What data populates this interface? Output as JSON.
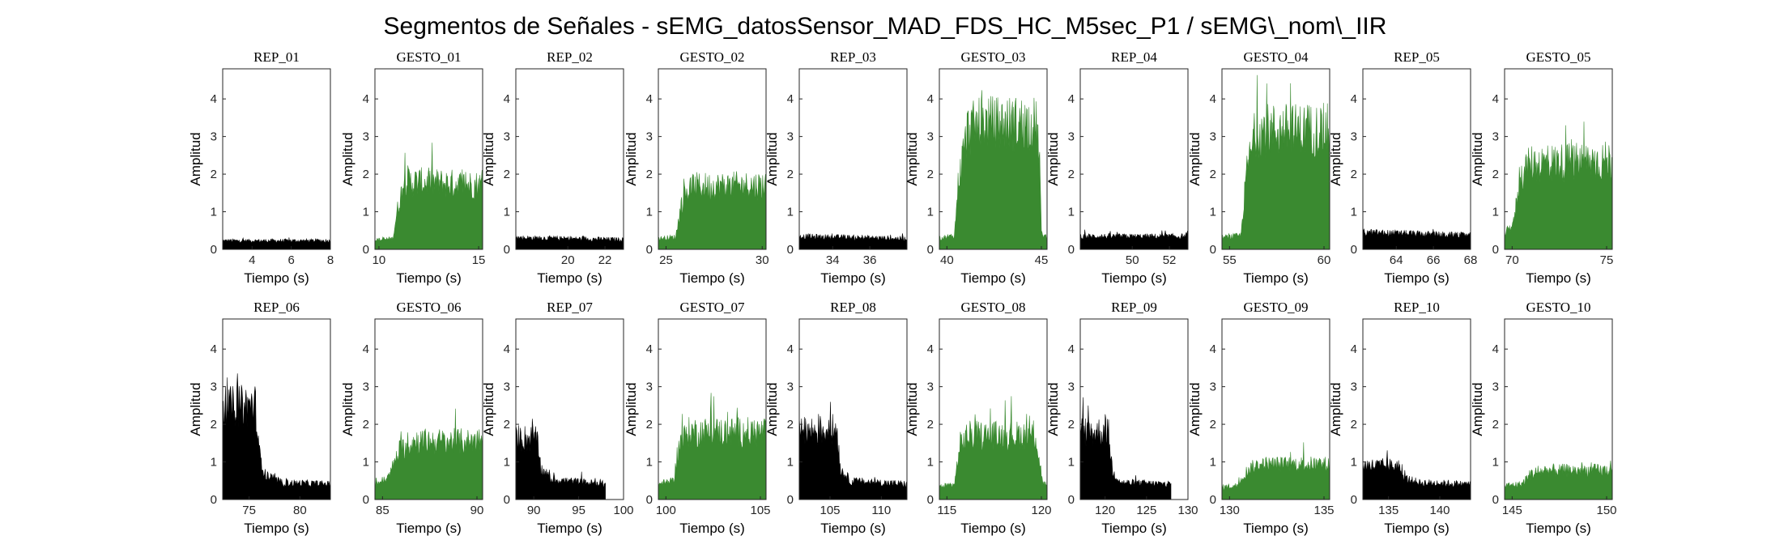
{
  "figure": {
    "title": "Segmentos de Señales - sEMG_datosSensor_MAD_FDS_HC_M5sec_P1 / sEMG\\_nom\\_IIR"
  },
  "colors": {
    "rep": "#000000",
    "gesto": "#3a8a30"
  },
  "chart_data": [
    {
      "type": "area",
      "title": "REP_01",
      "kind": "rep",
      "xlim": [
        2.5,
        8
      ],
      "ylim": [
        0,
        4.8
      ],
      "xticks": [
        4,
        6,
        8
      ],
      "yticks": [
        0,
        1,
        2,
        3,
        4
      ],
      "xlabel": "Tiempo (s)",
      "ylabel": "Amplitud",
      "envelope": [
        [
          2.5,
          0.28
        ],
        [
          8,
          0.28
        ]
      ]
    },
    {
      "type": "area",
      "title": "GESTO_01",
      "kind": "gesto",
      "xlim": [
        9.8,
        15.2
      ],
      "ylim": [
        0,
        4.8
      ],
      "xticks": [
        10,
        15
      ],
      "yticks": [
        0,
        1,
        2,
        3,
        4
      ],
      "xlabel": "Tiempo (s)",
      "ylabel": "Amplitud",
      "envelope": [
        [
          9.8,
          0.3
        ],
        [
          10.7,
          0.35
        ],
        [
          10.9,
          1.2
        ],
        [
          11.3,
          2.3
        ],
        [
          11.6,
          2.2
        ],
        [
          15.2,
          2.1
        ]
      ]
    },
    {
      "type": "area",
      "title": "REP_02",
      "kind": "rep",
      "xlim": [
        17.2,
        23
      ],
      "ylim": [
        0,
        4.8
      ],
      "xticks": [
        20,
        22
      ],
      "yticks": [
        0,
        1,
        2,
        3,
        4
      ],
      "xlabel": "Tiempo (s)",
      "ylabel": "Amplitud",
      "envelope": [
        [
          17.2,
          0.38
        ],
        [
          23,
          0.32
        ]
      ]
    },
    {
      "type": "area",
      "title": "GESTO_02",
      "kind": "gesto",
      "xlim": [
        24.6,
        30.2
      ],
      "ylim": [
        0,
        4.8
      ],
      "xticks": [
        25,
        30
      ],
      "yticks": [
        0,
        1,
        2,
        3,
        4
      ],
      "xlabel": "Tiempo (s)",
      "ylabel": "Amplitud",
      "envelope": [
        [
          24.6,
          0.35
        ],
        [
          25.5,
          0.4
        ],
        [
          25.8,
          1.5
        ],
        [
          26.3,
          2.05
        ],
        [
          30.2,
          2.1
        ]
      ]
    },
    {
      "type": "area",
      "title": "REP_03",
      "kind": "rep",
      "xlim": [
        32.2,
        38
      ],
      "ylim": [
        0,
        4.8
      ],
      "xticks": [
        34,
        36
      ],
      "yticks": [
        0,
        1,
        2,
        3,
        4
      ],
      "xlabel": "Tiempo (s)",
      "ylabel": "Amplitud",
      "envelope": [
        [
          32.2,
          0.42
        ],
        [
          38,
          0.35
        ]
      ]
    },
    {
      "type": "area",
      "title": "GESTO_03",
      "kind": "gesto",
      "xlim": [
        39.6,
        45.3
      ],
      "ylim": [
        0,
        4.8
      ],
      "xticks": [
        40,
        45
      ],
      "yticks": [
        0,
        1,
        2,
        3,
        4
      ],
      "xlabel": "Tiempo (s)",
      "ylabel": "Amplitud",
      "envelope": [
        [
          39.6,
          0.35
        ],
        [
          40.4,
          0.45
        ],
        [
          40.6,
          2.2
        ],
        [
          41.1,
          3.9
        ],
        [
          42,
          4.1
        ],
        [
          44.7,
          4.1
        ],
        [
          44.9,
          3.2
        ],
        [
          45.0,
          0.5
        ],
        [
          45.3,
          0.4
        ]
      ]
    },
    {
      "type": "area",
      "title": "REP_04",
      "kind": "rep",
      "xlim": [
        47.2,
        53
      ],
      "ylim": [
        0,
        4.8
      ],
      "xticks": [
        50,
        52
      ],
      "yticks": [
        0,
        1,
        2,
        3,
        4
      ],
      "xlabel": "Tiempo (s)",
      "ylabel": "Amplitud",
      "envelope": [
        [
          47.2,
          0.42
        ],
        [
          53,
          0.42
        ]
      ]
    },
    {
      "type": "area",
      "title": "GESTO_04",
      "kind": "gesto",
      "xlim": [
        54.6,
        60.3
      ],
      "ylim": [
        0,
        4.8
      ],
      "xticks": [
        55,
        60
      ],
      "yticks": [
        0,
        1,
        2,
        3,
        4
      ],
      "xlabel": "Tiempo (s)",
      "ylabel": "Amplitud",
      "envelope": [
        [
          54.6,
          0.38
        ],
        [
          55.6,
          0.45
        ],
        [
          55.9,
          2.5
        ],
        [
          56.4,
          3.9
        ],
        [
          60.3,
          3.9
        ]
      ]
    },
    {
      "type": "area",
      "title": "REP_05",
      "kind": "rep",
      "xlim": [
        62.2,
        68
      ],
      "ylim": [
        0,
        4.8
      ],
      "xticks": [
        64,
        66,
        68
      ],
      "yticks": [
        0,
        1,
        2,
        3,
        4
      ],
      "xlabel": "Tiempo (s)",
      "ylabel": "Amplitud",
      "envelope": [
        [
          62.2,
          0.55
        ],
        [
          68,
          0.45
        ]
      ]
    },
    {
      "type": "area",
      "title": "GESTO_05",
      "kind": "gesto",
      "xlim": [
        69.6,
        75.3
      ],
      "ylim": [
        0,
        4.8
      ],
      "xticks": [
        70,
        75
      ],
      "yticks": [
        0,
        1,
        2,
        3,
        4
      ],
      "xlabel": "Tiempo (s)",
      "ylabel": "Amplitud",
      "envelope": [
        [
          69.6,
          0.5
        ],
        [
          70.1,
          0.9
        ],
        [
          70.4,
          2.4
        ],
        [
          71,
          2.8
        ],
        [
          75.3,
          2.9
        ]
      ]
    },
    {
      "type": "area",
      "title": "REP_06",
      "kind": "rep",
      "xlim": [
        72.4,
        83
      ],
      "ylim": [
        0,
        4.8
      ],
      "xticks": [
        75,
        80
      ],
      "yticks": [
        0,
        1,
        2,
        3,
        4
      ],
      "xlabel": "Tiempo (s)",
      "ylabel": "Amplitud",
      "envelope": [
        [
          72.4,
          3.0
        ],
        [
          75.6,
          3.1
        ],
        [
          76,
          1.5
        ],
        [
          76.6,
          0.8
        ],
        [
          78,
          0.55
        ],
        [
          83,
          0.5
        ]
      ]
    },
    {
      "type": "area",
      "title": "GESTO_06",
      "kind": "gesto",
      "xlim": [
        84.6,
        90.3
      ],
      "ylim": [
        0,
        4.8
      ],
      "xticks": [
        85,
        90
      ],
      "yticks": [
        0,
        1,
        2,
        3,
        4
      ],
      "xlabel": "Tiempo (s)",
      "ylabel": "Amplitud",
      "envelope": [
        [
          84.6,
          0.5
        ],
        [
          85.3,
          0.7
        ],
        [
          85.9,
          1.6
        ],
        [
          86.7,
          1.9
        ],
        [
          90.3,
          1.9
        ]
      ]
    },
    {
      "type": "area",
      "title": "REP_07",
      "kind": "rep",
      "xlim": [
        88,
        100
      ],
      "ylim": [
        0,
        4.8
      ],
      "xticks": [
        90,
        95,
        100
      ],
      "yticks": [
        0,
        1,
        2,
        3,
        4
      ],
      "xlabel": "Tiempo (s)",
      "ylabel": "Amplitud",
      "envelope": [
        [
          88,
          2.0
        ],
        [
          90.3,
          2.0
        ],
        [
          90.8,
          1.0
        ],
        [
          92,
          0.65
        ],
        [
          98,
          0.5
        ]
      ]
    },
    {
      "type": "area",
      "title": "GESTO_07",
      "kind": "gesto",
      "xlim": [
        99.6,
        105.3
      ],
      "ylim": [
        0,
        4.8
      ],
      "xticks": [
        100,
        105
      ],
      "yticks": [
        0,
        1,
        2,
        3,
        4
      ],
      "xlabel": "Tiempo (s)",
      "ylabel": "Amplitud",
      "envelope": [
        [
          99.6,
          0.5
        ],
        [
          100.4,
          0.6
        ],
        [
          100.7,
          1.8
        ],
        [
          101.2,
          2.2
        ],
        [
          105.3,
          2.2
        ]
      ]
    },
    {
      "type": "area",
      "title": "REP_08",
      "kind": "rep",
      "xlim": [
        102,
        112.5
      ],
      "ylim": [
        0,
        4.8
      ],
      "xticks": [
        105,
        110
      ],
      "yticks": [
        0,
        1,
        2,
        3,
        4
      ],
      "xlabel": "Tiempo (s)",
      "ylabel": "Amplitud",
      "envelope": [
        [
          102,
          2.2
        ],
        [
          105.7,
          2.3
        ],
        [
          106,
          1.0
        ],
        [
          107,
          0.6
        ],
        [
          112.5,
          0.5
        ]
      ]
    },
    {
      "type": "area",
      "title": "GESTO_08",
      "kind": "gesto",
      "xlim": [
        114.6,
        120.3
      ],
      "ylim": [
        0,
        4.8
      ],
      "xticks": [
        115,
        120
      ],
      "yticks": [
        0,
        1,
        2,
        3,
        4
      ],
      "xlabel": "Tiempo (s)",
      "ylabel": "Amplitud",
      "envelope": [
        [
          114.6,
          0.4
        ],
        [
          115.4,
          0.5
        ],
        [
          115.7,
          1.8
        ],
        [
          116.1,
          2.1
        ],
        [
          119.7,
          2.1
        ],
        [
          119.9,
          1.2
        ],
        [
          120.1,
          0.5
        ],
        [
          120.3,
          0.5
        ]
      ]
    },
    {
      "type": "area",
      "title": "REP_09",
      "kind": "rep",
      "xlim": [
        117,
        130
      ],
      "ylim": [
        0,
        4.8
      ],
      "xticks": [
        120,
        125,
        130
      ],
      "yticks": [
        0,
        1,
        2,
        3,
        4
      ],
      "xlabel": "Tiempo (s)",
      "ylabel": "Amplitud",
      "envelope": [
        [
          117,
          2.2
        ],
        [
          120.4,
          2.2
        ],
        [
          120.9,
          0.9
        ],
        [
          122,
          0.55
        ],
        [
          128,
          0.5
        ]
      ]
    },
    {
      "type": "area",
      "title": "GESTO_09",
      "kind": "gesto",
      "xlim": [
        129.6,
        135.3
      ],
      "ylim": [
        0,
        4.8
      ],
      "xticks": [
        130,
        135
      ],
      "yticks": [
        0,
        1,
        2,
        3,
        4
      ],
      "xlabel": "Tiempo (s)",
      "ylabel": "Amplitud",
      "envelope": [
        [
          129.6,
          0.4
        ],
        [
          130.4,
          0.45
        ],
        [
          131,
          1.0
        ],
        [
          131.6,
          1.15
        ],
        [
          135.3,
          1.15
        ]
      ]
    },
    {
      "type": "area",
      "title": "REP_10",
      "kind": "rep",
      "xlim": [
        132.5,
        143
      ],
      "ylim": [
        0,
        4.8
      ],
      "xticks": [
        135,
        140
      ],
      "yticks": [
        0,
        1,
        2,
        3,
        4
      ],
      "xlabel": "Tiempo (s)",
      "ylabel": "Amplitud",
      "envelope": [
        [
          132.5,
          1.1
        ],
        [
          135.9,
          1.1
        ],
        [
          136.5,
          0.7
        ],
        [
          138,
          0.55
        ],
        [
          143,
          0.5
        ]
      ]
    },
    {
      "type": "area",
      "title": "GESTO_10",
      "kind": "gesto",
      "xlim": [
        144.6,
        150.3
      ],
      "ylim": [
        0,
        4.8
      ],
      "xticks": [
        145,
        150
      ],
      "yticks": [
        0,
        1,
        2,
        3,
        4
      ],
      "xlabel": "Tiempo (s)",
      "ylabel": "Amplitud",
      "envelope": [
        [
          144.6,
          0.45
        ],
        [
          145.5,
          0.5
        ],
        [
          146,
          0.85
        ],
        [
          146.8,
          0.95
        ],
        [
          150.3,
          0.95
        ]
      ]
    }
  ]
}
